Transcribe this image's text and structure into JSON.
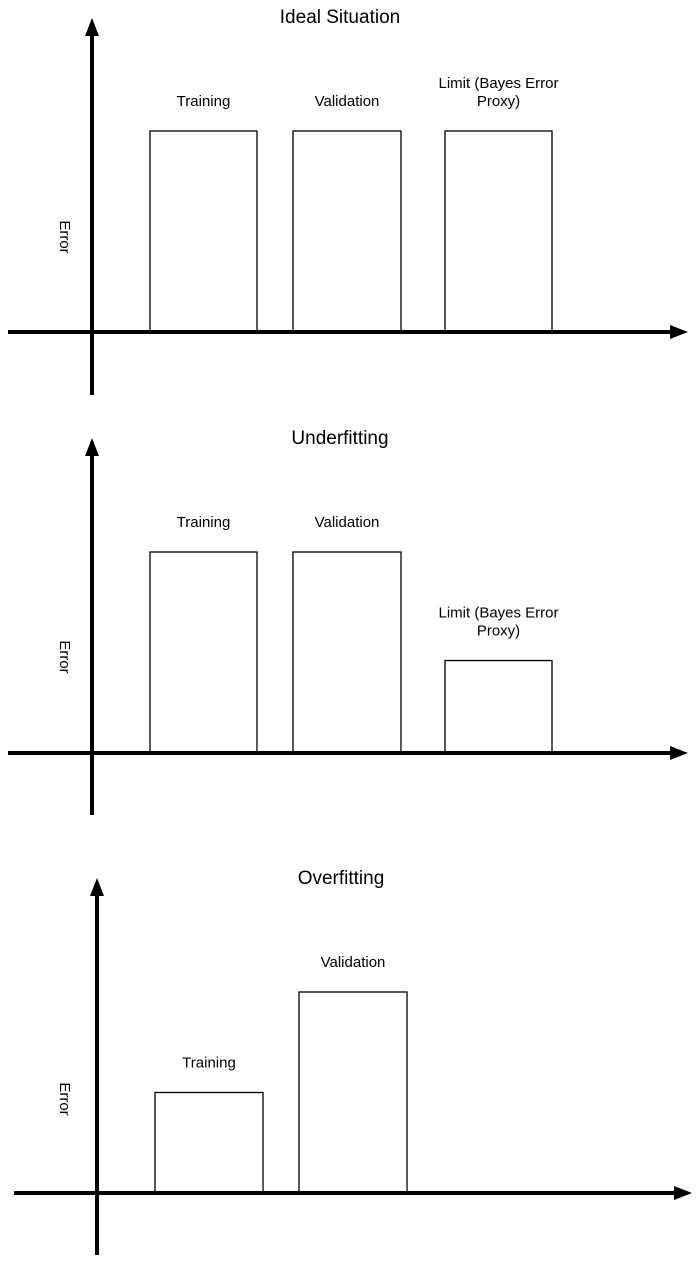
{
  "chart_data": [
    {
      "type": "bar",
      "title": "Ideal Situation",
      "xlabel": "",
      "ylabel": "Error",
      "categories": [
        "Training",
        "Validation",
        "Limit (Bayes Error Proxy)"
      ],
      "label_lines": [
        [
          "Training"
        ],
        [
          "Validation"
        ],
        [
          "Limit (Bayes Error",
          "Proxy)"
        ]
      ],
      "values": [
        1.0,
        1.0,
        1.0
      ],
      "ylim": [
        0,
        1.6
      ],
      "grid": false
    },
    {
      "type": "bar",
      "title": "Underfitting",
      "xlabel": "",
      "ylabel": "Error",
      "categories": [
        "Training",
        "Validation",
        "Limit (Bayes Error Proxy)"
      ],
      "label_lines": [
        [
          "Training"
        ],
        [
          "Validation"
        ],
        [
          "Limit (Bayes Error",
          "Proxy)"
        ]
      ],
      "values": [
        1.0,
        1.0,
        0.46
      ],
      "ylim": [
        0,
        1.6
      ],
      "grid": false
    },
    {
      "type": "bar",
      "title": "Overfitting",
      "xlabel": "",
      "ylabel": "Error",
      "categories": [
        "Training",
        "Validation"
      ],
      "label_lines": [
        [
          "Training"
        ],
        [
          "Validation"
        ]
      ],
      "values": [
        0.5,
        1.0
      ],
      "ylim": [
        0,
        1.6
      ],
      "grid": false
    }
  ]
}
